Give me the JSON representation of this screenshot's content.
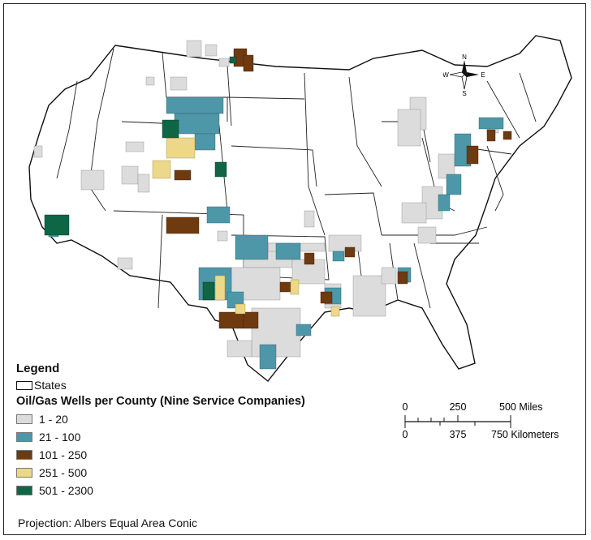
{
  "legend": {
    "title": "Legend",
    "states_label": "States",
    "wells_title": "Oil/Gas Wells per County (Nine Service Companies)",
    "classes": [
      {
        "label": "1 - 20",
        "color": "#dcdcdc"
      },
      {
        "label": "21 - 100",
        "color": "#4e97a8"
      },
      {
        "label": "101 - 250",
        "color": "#6e3a10"
      },
      {
        "label": "251 - 500",
        "color": "#ecd888"
      },
      {
        "label": "501 - 2300",
        "color": "#0f6646"
      }
    ]
  },
  "projection": "Projection: Albers Equal Area Conic",
  "scale": {
    "miles": [
      "0",
      "250",
      "500 Miles"
    ],
    "kilometers": [
      "0",
      "375",
      "750 Kilometers"
    ]
  },
  "compass": {
    "n": "N",
    "s": "S",
    "e": "E",
    "w": "W"
  }
}
